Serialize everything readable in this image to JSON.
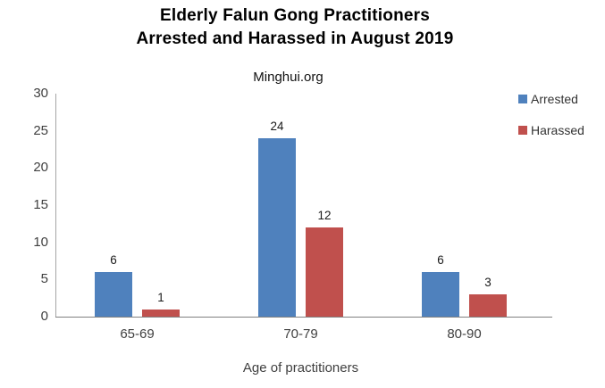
{
  "chart_data": {
    "type": "bar",
    "title": "Elderly Falun Gong Practitioners\nArrested and Harassed in August 2019",
    "subtitle": "Minghui.org",
    "xlabel": "Age of practitioners",
    "ylabel": "",
    "categories": [
      "65-69",
      "70-79",
      "80-90"
    ],
    "series": [
      {
        "name": "Arrested",
        "color": "#4F81BD",
        "values": [
          6,
          24,
          6
        ]
      },
      {
        "name": "Harassed",
        "color": "#C0504D",
        "values": [
          1,
          12,
          3
        ]
      }
    ],
    "ylim": [
      0,
      30
    ],
    "yticks": [
      0,
      5,
      10,
      15,
      20,
      25,
      30
    ],
    "grid": false,
    "legend_position": "top-right",
    "data_labels": true,
    "background": "#ffffff",
    "axis_color": "#808080",
    "tick_label_color": "#404040"
  }
}
